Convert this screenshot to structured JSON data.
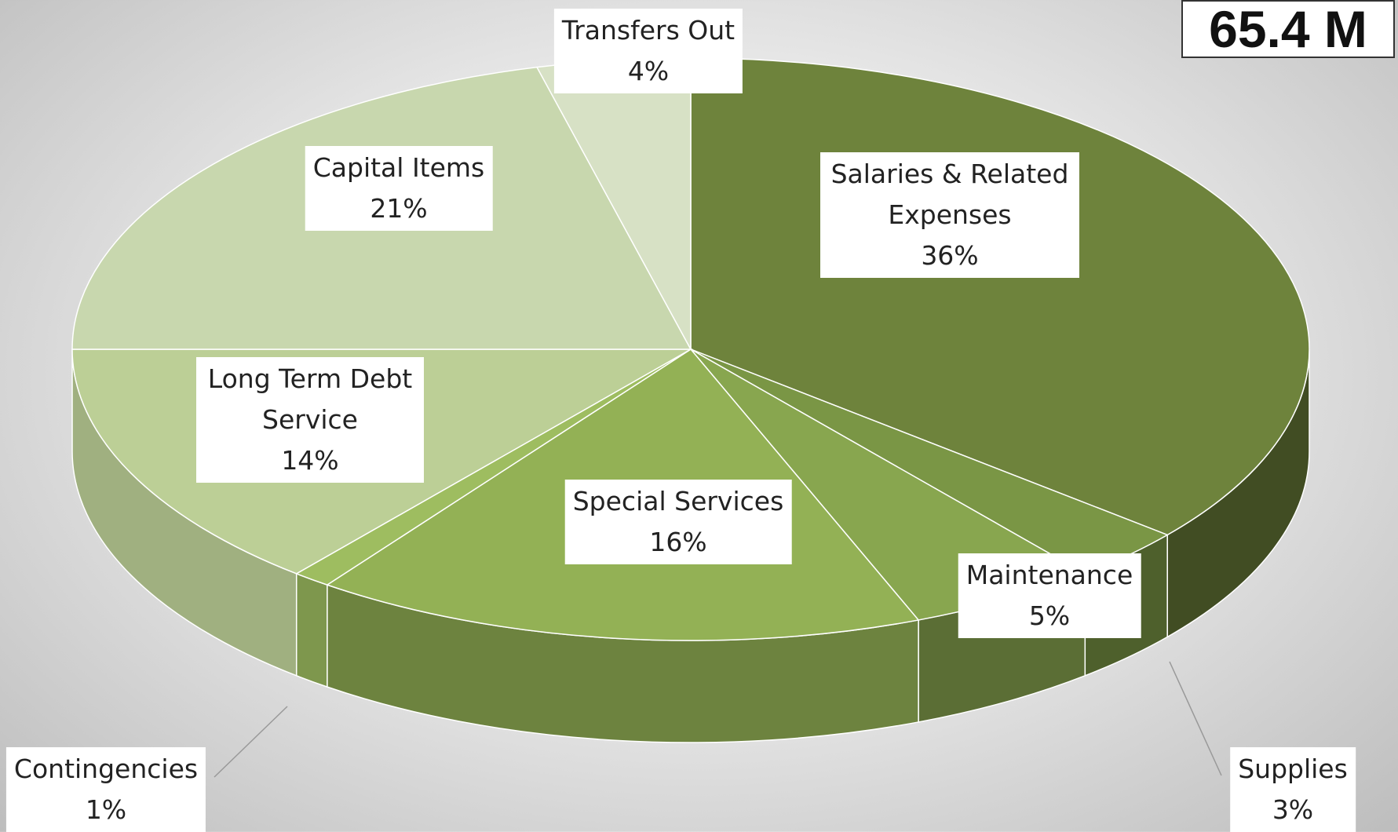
{
  "chart_data": {
    "type": "pie",
    "annotation": "65.4 M",
    "categories": [
      "Salaries & Related Expenses",
      "Supplies",
      "Maintenance",
      "Special Services",
      "Contingencies",
      "Long Term Debt Service",
      "Capital Items",
      "Transfers Out"
    ],
    "values": [
      36,
      3,
      5,
      16,
      1,
      14,
      21,
      4
    ],
    "value_labels": [
      "36%",
      "3%",
      "5%",
      "16%",
      "1%",
      "14%",
      "21%",
      "4%"
    ],
    "colors": [
      "#6e833c",
      "#7a9645",
      "#88a64f",
      "#93b155",
      "#9ebd60",
      "#bccf96",
      "#c8d7ae",
      "#d7e1c5"
    ]
  }
}
